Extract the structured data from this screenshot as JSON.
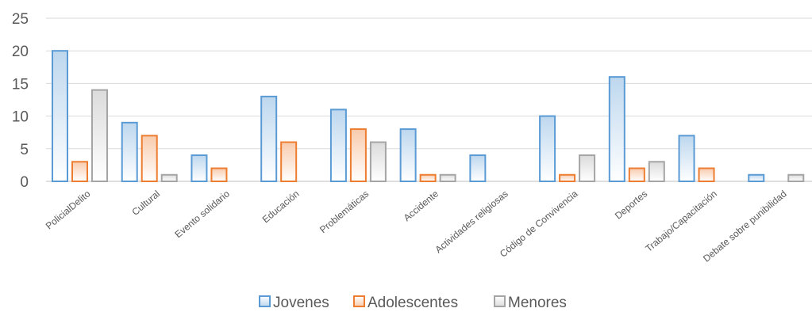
{
  "chart_data": {
    "type": "bar",
    "categories": [
      "PolicialDelito",
      "Cultural",
      "Evento solidario",
      "Educación",
      "Problemáticas",
      "Accidente",
      "Actividades religiosas",
      "Código de Convivencia",
      "Deportes",
      "Trabajo/Capacitación",
      "Debate sobre punibilidad"
    ],
    "series": [
      {
        "name": "Jovenes",
        "values": [
          20,
          9,
          4,
          13,
          11,
          8,
          4,
          10,
          16,
          7,
          1
        ]
      },
      {
        "name": "Adolescentes",
        "values": [
          3,
          7,
          2,
          6,
          8,
          1,
          0,
          1,
          2,
          2,
          0
        ]
      },
      {
        "name": "Menores",
        "values": [
          14,
          1,
          0,
          0,
          6,
          1,
          0,
          4,
          3,
          0,
          1
        ]
      }
    ],
    "ylim": [
      0,
      25
    ],
    "yticks": [
      0,
      5,
      10,
      15,
      20,
      25
    ],
    "grid": true,
    "legend": "bottom",
    "colors": {
      "Jovenes": {
        "stroke": "#5b9bd5",
        "fill_top": "#ffffff",
        "fill_bottom": "#bdd7ee"
      },
      "Adolescentes": {
        "stroke": "#ed7d31",
        "fill_top": "#ffffff",
        "fill_bottom": "#f8cbad"
      },
      "Menores": {
        "stroke": "#a5a5a5",
        "fill_top": "#ffffff",
        "fill_bottom": "#dbdbdb"
      }
    }
  }
}
